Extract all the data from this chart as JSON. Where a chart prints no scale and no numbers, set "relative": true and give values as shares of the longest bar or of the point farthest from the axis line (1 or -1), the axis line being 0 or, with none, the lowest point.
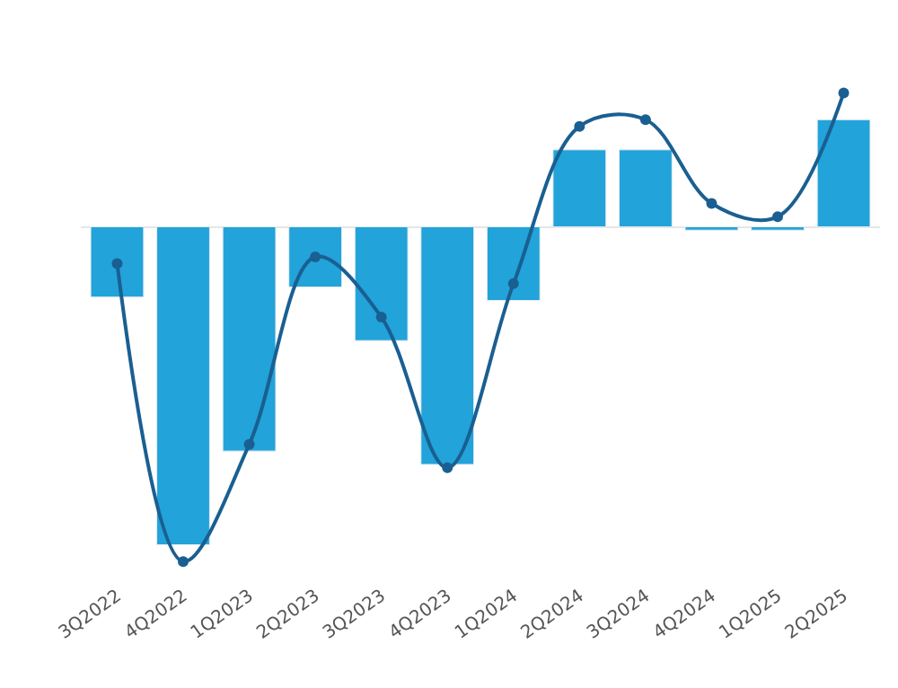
{
  "chart_data": {
    "type": "bar",
    "relative": true,
    "categories": [
      "3Q2022",
      "4Q2022",
      "1Q2023",
      "2Q2023",
      "3Q2023",
      "4Q2023",
      "1Q2024",
      "2Q2024",
      "3Q2024",
      "4Q2024",
      "1Q2025",
      "2Q2025"
    ],
    "series": [
      {
        "color": "#22a3d9",
        "values": [
          -0.21,
          -0.95,
          -0.67,
          -0.18,
          -0.34,
          -0.71,
          -0.22,
          0.23,
          0.23,
          -0.01,
          -0.01,
          0.32
        ]
      },
      {
        "type": "line",
        "color": "#1a5f91",
        "marker": "circle",
        "line_style": "solid",
        "values": [
          -0.11,
          -1,
          -0.65,
          -0.09,
          -0.27,
          -0.72,
          -0.17,
          0.3,
          0.32,
          0.07,
          0.03,
          0.4
        ]
      }
    ]
  }
}
